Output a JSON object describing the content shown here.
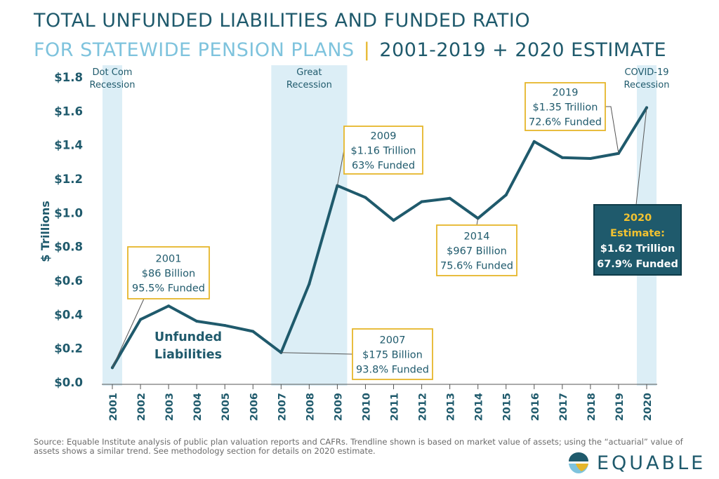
{
  "title_line1": "TOTAL UNFUNDED LIABILITIES AND FUNDED RATIO",
  "title_line2_part1": "FOR STATEWIDE PENSION PLANS",
  "title_line2_separator": "|",
  "title_line2_part2": "2001-2019 + 2020 ESTIMATE",
  "source_text": "Source: Equable Institute analysis of public plan valuation reports and CAFRs. Trendline shown is based on market value of assets; using the “actuarial” value of assets shows a similar trend.  See methodology section for details on 2020 estimate.",
  "logo_text": "EQUABLE",
  "colors": {
    "line": "#1f5a6c",
    "title": "#1f5a6c",
    "title_subtitle": "#7ec3dd",
    "recession_band": "#dceef6",
    "callout_border": "#e6b62a",
    "highlight_box": "#1f5a6c",
    "highlight_accent": "#f2c230"
  },
  "chart_data": {
    "type": "line",
    "title": "TOTAL UNFUNDED LIABILITIES AND FUNDED RATIO FOR STATEWIDE PENSION PLANS | 2001-2019 + 2020 ESTIMATE",
    "ylabel": "$ Trillions",
    "xlabel": "",
    "ylim": [
      0,
      1.8
    ],
    "y_ticks": [
      0.0,
      0.2,
      0.4,
      0.6,
      0.8,
      1.0,
      1.2,
      1.4,
      1.6,
      1.8
    ],
    "y_tick_labels": [
      "$0.0",
      "$0.2",
      "$0.4",
      "$0.6",
      "$0.8",
      "$1.0",
      "$1.2",
      "$1.4",
      "$1.6",
      "$1.8"
    ],
    "categories": [
      "2001",
      "2002",
      "2003",
      "2004",
      "2005",
      "2006",
      "2007",
      "2008",
      "2009",
      "2010",
      "2011",
      "2012",
      "2013",
      "2014",
      "2015",
      "2016",
      "2017",
      "2018",
      "2019",
      "2020"
    ],
    "series": [
      {
        "name": "Unfunded Liabilities",
        "values": [
          0.086,
          0.37,
          0.45,
          0.36,
          0.335,
          0.3,
          0.175,
          0.58,
          1.16,
          1.09,
          0.955,
          1.065,
          1.085,
          0.967,
          1.105,
          1.42,
          1.325,
          1.32,
          1.35,
          1.62
        ]
      }
    ],
    "series_label": [
      "Unfunded",
      "Liabilities"
    ],
    "recessions": [
      {
        "label": [
          "Dot Com",
          "Recession"
        ],
        "from": "2001",
        "to": "2001"
      },
      {
        "label": [
          "Great",
          "Recession"
        ],
        "from": "2007",
        "to": "2009"
      },
      {
        "label": [
          "COVID-19",
          "Recession"
        ],
        "from": "2020",
        "to": "2020"
      }
    ],
    "annotations": [
      {
        "year": "2001",
        "lines": [
          "2001",
          "$86 Billion",
          "95.5% Funded"
        ],
        "style": "outline"
      },
      {
        "year": "2007",
        "lines": [
          "2007",
          "$175 Billion",
          "93.8% Funded"
        ],
        "style": "outline"
      },
      {
        "year": "2009",
        "lines": [
          "2009",
          "$1.16 Trillion",
          "63% Funded"
        ],
        "style": "outline"
      },
      {
        "year": "2014",
        "lines": [
          "2014",
          "$967 Billion",
          "75.6% Funded"
        ],
        "style": "outline"
      },
      {
        "year": "2019",
        "lines": [
          "2019",
          "$1.35 Trillion",
          "72.6% Funded"
        ],
        "style": "outline"
      },
      {
        "year": "2020",
        "lines": [
          "2020",
          "Estimate:",
          "$1.62 Trillion",
          "67.9% Funded"
        ],
        "style": "filled"
      }
    ],
    "grid": false,
    "legend": "none"
  }
}
